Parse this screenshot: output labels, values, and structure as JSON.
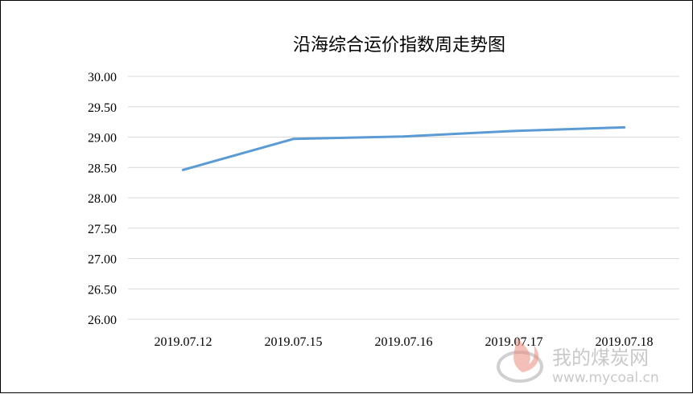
{
  "chart_data": {
    "type": "line",
    "title": "沿海综合运价指数周走势图",
    "categories": [
      "2019.07.12",
      "2019.07.15",
      "2019.07.16",
      "2019.07.17",
      "2019.07.18"
    ],
    "series": [
      {
        "values": [
          28.46,
          28.97,
          29.01,
          29.1,
          29.16
        ],
        "color": "#5b9bd5"
      }
    ],
    "y_ticks": [
      "30.00",
      "29.50",
      "29.00",
      "28.50",
      "28.00",
      "27.50",
      "27.00",
      "26.50",
      "26.00"
    ],
    "ylim": [
      26,
      30
    ],
    "xlabel": "",
    "ylabel": "",
    "grid": true,
    "legend": "none"
  },
  "watermark": {
    "name": "我的煤炭网",
    "url": "www.mycoal.cn",
    "icon": "flame-logo-icon"
  }
}
